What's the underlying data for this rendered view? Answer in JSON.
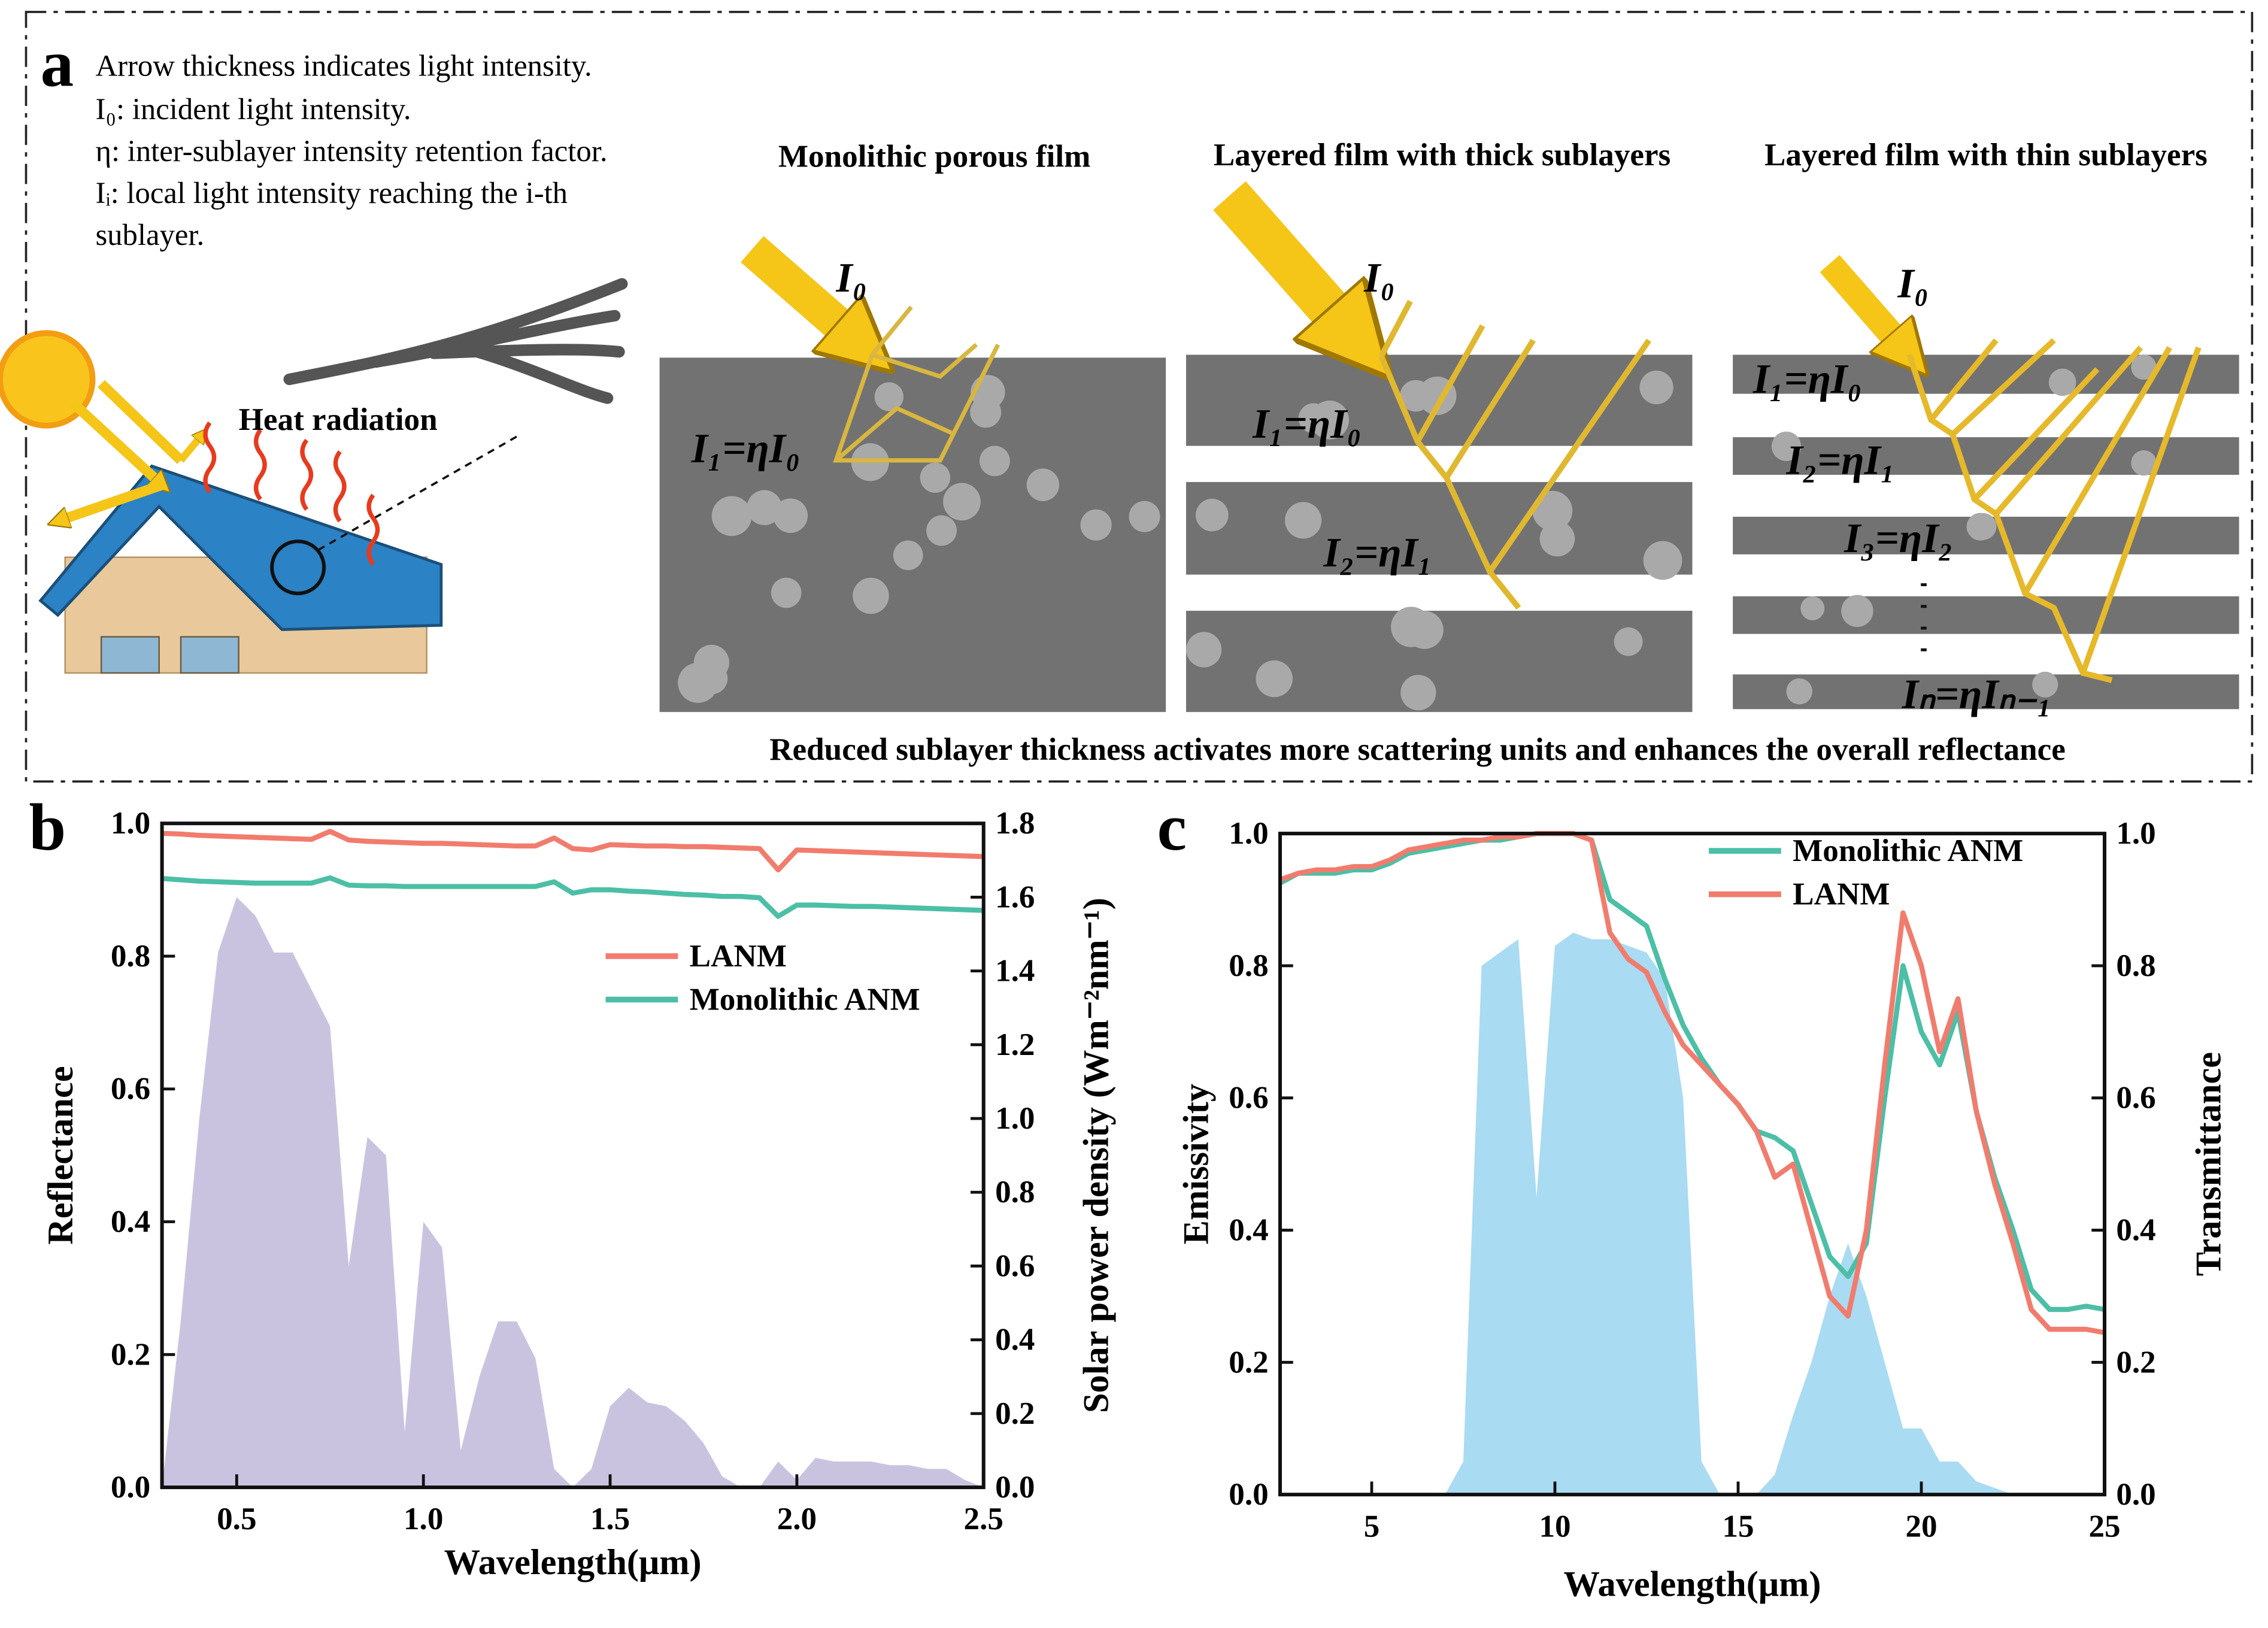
{
  "panel_a": {
    "label": "a",
    "notes": [
      "Arrow thickness indicates light intensity.",
      "I₀: incident light intensity.",
      "η: inter-sublayer intensity retention factor.",
      "Iᵢ: local light intensity reaching the i-th",
      "sublayer."
    ],
    "heat_label": "Heat radiation",
    "films": [
      {
        "title": "Monolithic porous film",
        "labels": [
          "I₀",
          "I₁=ηI₀"
        ]
      },
      {
        "title": "Layered film with thick sublayers",
        "labels": [
          "I₀",
          "I₁=ηI₀",
          "I₂=ηI₁"
        ]
      },
      {
        "title": "Layered film with thin sublayers",
        "labels": [
          "I₀",
          "I₁=ηI₀",
          "I₂=ηI₁",
          "I₃=ηI₂",
          "Iₙ=ηIₙ₋₁"
        ]
      }
    ],
    "caption": "Reduced sublayer thickness activates more scattering units and enhances the overall reflectance"
  },
  "chart_data": [
    {
      "type": "line",
      "panel_label": "b",
      "x_label": "Wavelength(μm)",
      "y_label": "Reflectance",
      "y2_label": "Solar power density (Wm⁻²nm⁻¹)",
      "xlim": [
        0.3,
        2.5
      ],
      "xticks": [
        0.5,
        {
          "value": 1,
          "label": "1.0"
        },
        1.5,
        {
          "value": 2,
          "label": "2.0"
        },
        2.5
      ],
      "ylim": [
        0,
        1
      ],
      "yticks": [
        {
          "value": 0,
          "label": "0.0"
        },
        0.2,
        0.4,
        0.6,
        0.8,
        {
          "value": 1,
          "label": "1.0"
        }
      ],
      "y2lim": [
        0,
        1.8
      ],
      "y2ticks": [
        {
          "value": 0,
          "label": "0.0"
        },
        0.2,
        0.4,
        0.6,
        0.8,
        {
          "value": 1,
          "label": "1.0"
        },
        1.2,
        1.4,
        1.6,
        1.8
      ],
      "legend": "right",
      "x": [
        0.3,
        0.35,
        0.4,
        0.45,
        0.5,
        0.55,
        0.6,
        0.65,
        0.7,
        0.75,
        0.8,
        0.85,
        0.9,
        0.95,
        1.0,
        1.05,
        1.1,
        1.15,
        1.2,
        1.25,
        1.3,
        1.35,
        1.4,
        1.45,
        1.5,
        1.55,
        1.6,
        1.65,
        1.7,
        1.75,
        1.8,
        1.85,
        1.9,
        1.95,
        2.0,
        2.05,
        2.1,
        2.15,
        2.2,
        2.25,
        2.3,
        2.35,
        2.4,
        2.45,
        2.5
      ],
      "series": [
        {
          "style": "area",
          "axis": "y2",
          "color": "#cac3e0",
          "values": [
            0,
            0.45,
            1.0,
            1.45,
            1.6,
            1.55,
            1.45,
            1.45,
            1.35,
            1.25,
            0.6,
            0.95,
            0.9,
            0.15,
            0.72,
            0.65,
            0.1,
            0.3,
            0.45,
            0.45,
            0.35,
            0.05,
            0,
            0.05,
            0.22,
            0.27,
            0.23,
            0.22,
            0.18,
            0.12,
            0.03,
            0,
            0,
            0.07,
            0.02,
            0.08,
            0.07,
            0.07,
            0.07,
            0.06,
            0.06,
            0.05,
            0.05,
            0.02,
            0
          ]
        },
        {
          "name": "LANM",
          "color": "#f17c6e",
          "values": [
            0.985,
            0.984,
            0.982,
            0.981,
            0.98,
            0.979,
            0.978,
            0.977,
            0.976,
            0.988,
            0.975,
            0.973,
            0.972,
            0.971,
            0.97,
            0.97,
            0.969,
            0.968,
            0.967,
            0.966,
            0.966,
            0.978,
            0.962,
            0.96,
            0.968,
            0.967,
            0.966,
            0.966,
            0.965,
            0.965,
            0.964,
            0.963,
            0.962,
            0.93,
            0.96,
            0.959,
            0.958,
            0.957,
            0.956,
            0.955,
            0.954,
            0.953,
            0.952,
            0.951,
            0.95
          ]
        },
        {
          "name": "Monolithic ANM",
          "color": "#4cbfa6",
          "values": [
            0.917,
            0.915,
            0.913,
            0.912,
            0.911,
            0.91,
            0.91,
            0.91,
            0.91,
            0.918,
            0.907,
            0.906,
            0.906,
            0.905,
            0.905,
            0.905,
            0.905,
            0.905,
            0.905,
            0.905,
            0.905,
            0.912,
            0.895,
            0.9,
            0.9,
            0.898,
            0.897,
            0.895,
            0.893,
            0.892,
            0.89,
            0.89,
            0.888,
            0.86,
            0.877,
            0.877,
            0.876,
            0.875,
            0.875,
            0.874,
            0.873,
            0.872,
            0.871,
            0.87,
            0.869
          ]
        }
      ]
    },
    {
      "type": "line",
      "panel_label": "c",
      "x_label": "Wavelength(μm)",
      "y_label": "Emissivity",
      "y2_label": "Transmittance",
      "xlim": [
        2.5,
        25
      ],
      "xticks": [
        5,
        10,
        15,
        20,
        25
      ],
      "ylim": [
        0,
        1
      ],
      "yticks": [
        {
          "value": 0,
          "label": "0.0"
        },
        0.2,
        0.4,
        0.6,
        0.8,
        {
          "value": 1,
          "label": "1.0"
        }
      ],
      "y2lim": [
        0,
        1
      ],
      "y2ticks": [
        {
          "value": 0,
          "label": "0.0"
        },
        0.2,
        0.4,
        0.6,
        0.8,
        {
          "value": 1,
          "label": "1.0"
        }
      ],
      "legend": "upper right",
      "x": [
        2.5,
        3,
        3.5,
        4,
        4.5,
        5,
        5.5,
        6,
        6.5,
        7,
        7.5,
        8,
        8.5,
        9,
        9.5,
        10,
        10.5,
        11,
        11.5,
        12,
        12.5,
        13,
        13.5,
        14,
        14.5,
        15,
        15.5,
        16,
        16.5,
        17,
        17.5,
        18,
        18.5,
        19,
        19.5,
        20,
        20.5,
        21,
        21.5,
        22,
        22.5,
        23,
        23.5,
        24,
        24.5,
        25
      ],
      "series": [
        {
          "style": "area",
          "axis": "y2",
          "color": "#a9dbf2",
          "values": [
            0,
            0,
            0,
            0,
            0,
            0,
            0,
            0,
            0,
            0,
            0.05,
            0.8,
            0.82,
            0.84,
            0.45,
            0.83,
            0.85,
            0.84,
            0.84,
            0.83,
            0.82,
            0.78,
            0.6,
            0.05,
            0,
            0,
            0,
            0.03,
            0.12,
            0.2,
            0.3,
            0.38,
            0.3,
            0.2,
            0.1,
            0.1,
            0.05,
            0.05,
            0.02,
            0.01,
            0,
            0,
            0,
            0,
            0,
            0
          ]
        },
        {
          "name": "Monolithic ANM",
          "color": "#4cbfa6",
          "values": [
            0.925,
            0.94,
            0.94,
            0.94,
            0.945,
            0.945,
            0.955,
            0.97,
            0.975,
            0.98,
            0.985,
            0.99,
            0.99,
            0.995,
            1,
            1,
            1,
            0.99,
            0.9,
            0.88,
            0.86,
            0.78,
            0.71,
            0.66,
            0.62,
            0.59,
            0.55,
            0.54,
            0.52,
            0.44,
            0.36,
            0.33,
            0.38,
            0.6,
            0.8,
            0.7,
            0.65,
            0.73,
            0.58,
            0.48,
            0.4,
            0.31,
            0.28,
            0.28,
            0.285,
            0.28
          ]
        },
        {
          "name": "LANM",
          "color": "#f17c6e",
          "values": [
            0.93,
            0.94,
            0.945,
            0.945,
            0.95,
            0.95,
            0.96,
            0.975,
            0.98,
            0.985,
            0.99,
            0.99,
            0.995,
            0.995,
            1,
            1,
            1,
            0.99,
            0.85,
            0.81,
            0.79,
            0.73,
            0.68,
            0.65,
            0.62,
            0.59,
            0.55,
            0.48,
            0.5,
            0.4,
            0.3,
            0.27,
            0.4,
            0.65,
            0.88,
            0.8,
            0.67,
            0.75,
            0.58,
            0.47,
            0.38,
            0.28,
            0.25,
            0.25,
            0.25,
            0.245
          ]
        }
      ]
    }
  ]
}
